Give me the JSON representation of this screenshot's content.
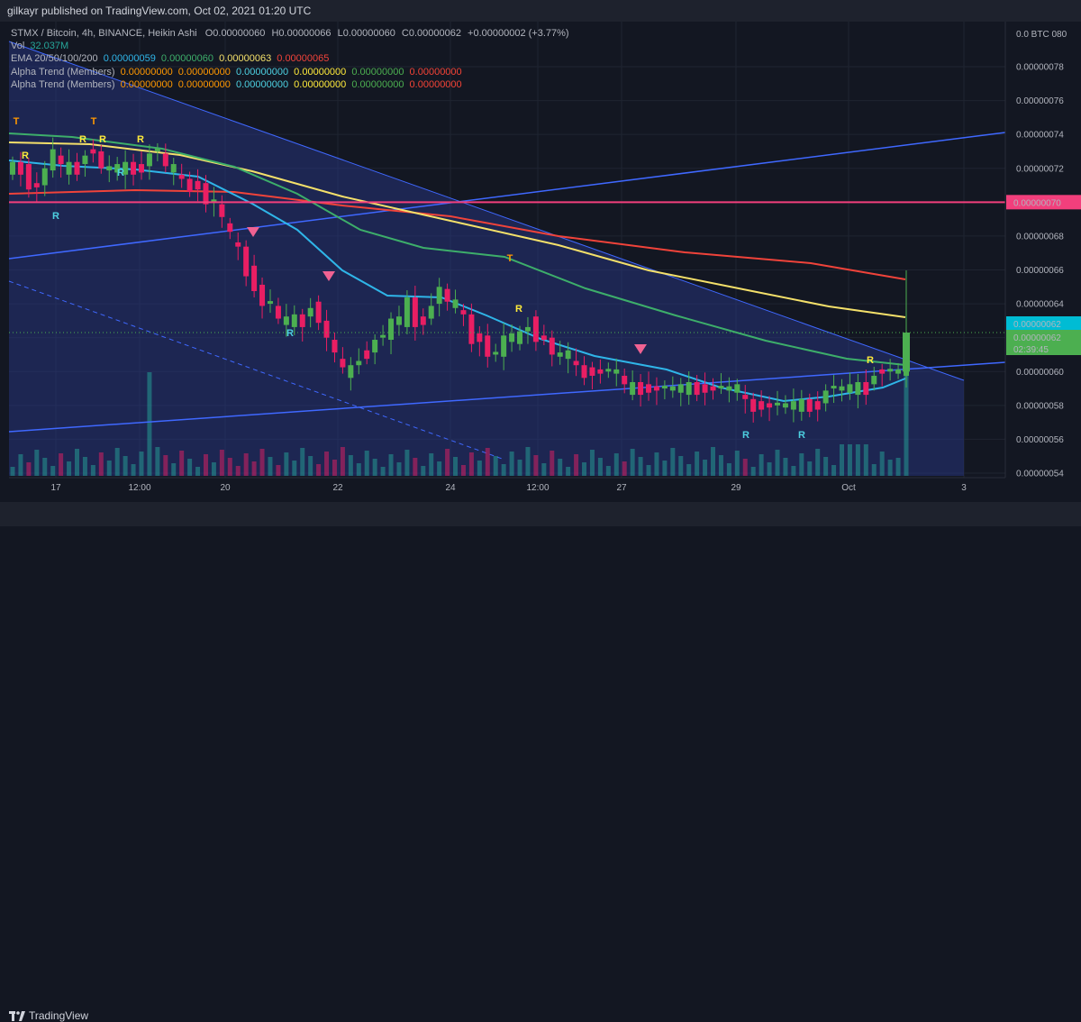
{
  "header": {
    "published": "gilkayr published on TradingView.com, Oct 02, 2021 01:20 UTC"
  },
  "legend": {
    "symbol_line": "STMX / Bitcoin, 4h, BINANCE, Heikin Ashi",
    "ohlc": [
      {
        "label": "O",
        "value": "0.00000060"
      },
      {
        "label": "H",
        "value": "0.00000066"
      },
      {
        "label": "L",
        "value": "0.00000060"
      },
      {
        "label": "C",
        "value": "0.00000062"
      }
    ],
    "change": "+0.00000002 (+3.77%)",
    "vol_label": "Vol",
    "vol_value": "32.037M",
    "ema_label": "EMA 20/50/100/200",
    "ema_values": [
      "0.00000059",
      "0.00000060",
      "0.00000063",
      "0.00000065"
    ],
    "alpha1_label": "Alpha Trend (Members)",
    "alpha2_label": "Alpha Trend (Members)",
    "alpha_values": [
      "0.00000000",
      "0.00000000",
      "0.00000000",
      "0.00000000",
      "0.00000000",
      "0.00000000"
    ]
  },
  "colors": {
    "up": "#4caf50",
    "down": "#e91e63",
    "ema20": "#2fb5e8",
    "ema50": "#3dae6a",
    "ema100": "#f4e06a",
    "ema200": "#f0433a",
    "trendline": "#3f68ff",
    "hline": "#f23f7c",
    "alpha_orange": "#ff9800",
    "alpha_cyan": "#4dd0e1"
  },
  "price_axis": {
    "currency": "BTC",
    "top_label": "0.0 BTC 080",
    "labels": [
      "0.00000078",
      "0.00000076",
      "0.00000074",
      "0.00000072",
      "0.00000070",
      "0.00000068",
      "0.00000066",
      "0.00000064",
      "0.00000062",
      "0.00000060",
      "0.00000058",
      "0.00000056",
      "0.00000054"
    ],
    "hline_label": "0.00000070",
    "last_price_label": "0.00000062",
    "current_close_label": "0.00000062",
    "countdown": "02:39:45"
  },
  "time_axis": {
    "labels": [
      "17",
      "12:00",
      "20",
      "22",
      "24",
      "12:00",
      "27",
      "29",
      "Oct",
      "3"
    ]
  },
  "signals": {
    "T": "T",
    "R": "R"
  },
  "footer": {
    "brand": "TradingView"
  },
  "chart_data": {
    "type": "candlestick",
    "title": "STMX / Bitcoin, 4h, BINANCE, Heikin Ashi",
    "ylim": [
      5.4e-07,
      8e-07
    ],
    "y_unit": "BTC",
    "x_ticks": [
      "17",
      "12:00",
      "20",
      "22",
      "24",
      "12:00",
      "27",
      "29",
      "Oct",
      "3"
    ],
    "close_series": [
      72,
      72,
      71,
      71,
      72,
      73,
      72,
      72,
      72,
      73,
      73,
      72,
      72,
      72,
      72,
      72,
      72,
      73,
      73,
      72,
      72,
      71,
      71,
      71,
      70,
      70,
      69,
      68,
      67,
      66,
      65,
      64,
      64,
      63,
      63,
      63,
      63,
      64,
      63,
      62,
      61,
      60,
      60,
      61,
      61,
      62,
      62,
      63,
      63,
      64,
      63,
      63,
      64,
      65,
      64,
      64,
      63,
      62,
      62,
      61,
      61,
      62,
      62,
      62,
      63,
      62,
      62,
      61,
      61,
      61,
      60,
      60,
      60,
      60,
      60,
      60,
      59,
      59,
      59,
      59,
      59,
      59,
      59,
      59,
      59,
      59,
      59,
      59,
      59,
      59,
      59,
      58,
      58,
      58,
      58,
      58,
      58,
      58,
      58,
      58,
      58,
      59,
      59,
      59,
      59,
      59,
      59,
      60,
      60,
      60,
      60,
      62
    ],
    "horizontal_line": 7e-07,
    "last_close": 6.2e-07
  }
}
